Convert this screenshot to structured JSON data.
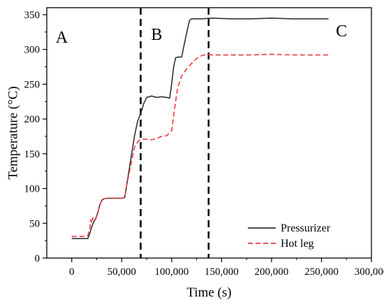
{
  "chart_data": {
    "type": "line",
    "xlabel": "Time (s)",
    "ylabel": "Temperature (°C)",
    "xlim": [
      -25000,
      300000
    ],
    "ylim": [
      0,
      360
    ],
    "xticks": [
      0,
      50000,
      100000,
      150000,
      200000,
      250000,
      300000
    ],
    "xtick_labels": [
      "0",
      "50,000",
      "100,000",
      "150,000",
      "200,000",
      "250,000",
      "300,000"
    ],
    "yticks": [
      0,
      50,
      100,
      150,
      200,
      250,
      300,
      350
    ],
    "ytick_labels": [
      "0",
      "50",
      "100",
      "150",
      "200",
      "250",
      "300",
      "350"
    ],
    "grid": false,
    "legend_position": "bottom-right",
    "region_boundaries": [
      69000,
      137000
    ],
    "region_labels": [
      {
        "text": "A",
        "x": -10000,
        "y": 318
      },
      {
        "text": "B",
        "x": 85000,
        "y": 322
      },
      {
        "text": "C",
        "x": 270000,
        "y": 327
      }
    ],
    "series": [
      {
        "name": "Pressurizer",
        "color": "#333333",
        "dash": "solid",
        "x": [
          0,
          16000,
          18000,
          20000,
          22000,
          24000,
          26000,
          28000,
          30000,
          32000,
          35000,
          40000,
          45000,
          50000,
          53000,
          55000,
          60000,
          63000,
          66000,
          70000,
          72000,
          75000,
          80000,
          85000,
          90000,
          95000,
          98000,
          100000,
          102000,
          104000,
          106000,
          110000,
          112000,
          116000,
          118000,
          120000,
          125000,
          130000,
          140000,
          160000,
          180000,
          200000,
          220000,
          240000,
          257000
        ],
        "y": [
          28,
          28,
          35,
          45,
          52,
          57,
          65,
          76,
          83,
          85,
          86,
          86,
          86,
          86,
          87,
          105,
          150,
          177,
          197,
          212,
          222,
          231,
          233,
          231,
          232,
          231,
          230,
          250,
          275,
          288,
          289,
          289,
          303,
          330,
          342,
          344,
          344,
          344,
          345,
          344,
          344,
          345,
          344,
          344,
          344
        ]
      },
      {
        "name": "Hot leg",
        "color": "#e8383d",
        "dash": "dashed",
        "x": [
          0,
          10000,
          16000,
          18000,
          19000,
          20000,
          21000,
          22000,
          24000,
          26000,
          28000,
          30000,
          32000,
          35000,
          40000,
          45000,
          50000,
          53000,
          55000,
          60000,
          63000,
          66000,
          68000,
          70000,
          75000,
          80000,
          85000,
          90000,
          95000,
          100000,
          103000,
          106000,
          110000,
          115000,
          120000,
          125000,
          130000,
          135000,
          140000,
          160000,
          180000,
          200000,
          220000,
          240000,
          257000
        ],
        "y": [
          31,
          31,
          32,
          42,
          55,
          50,
          58,
          54,
          56,
          65,
          75,
          83,
          85,
          86,
          86,
          86,
          86,
          87,
          105,
          140,
          160,
          167,
          170,
          171,
          171,
          170,
          172,
          175,
          176,
          183,
          215,
          245,
          262,
          272,
          280,
          287,
          291,
          293,
          292,
          292,
          292,
          293,
          292,
          292,
          292
        ]
      }
    ]
  }
}
